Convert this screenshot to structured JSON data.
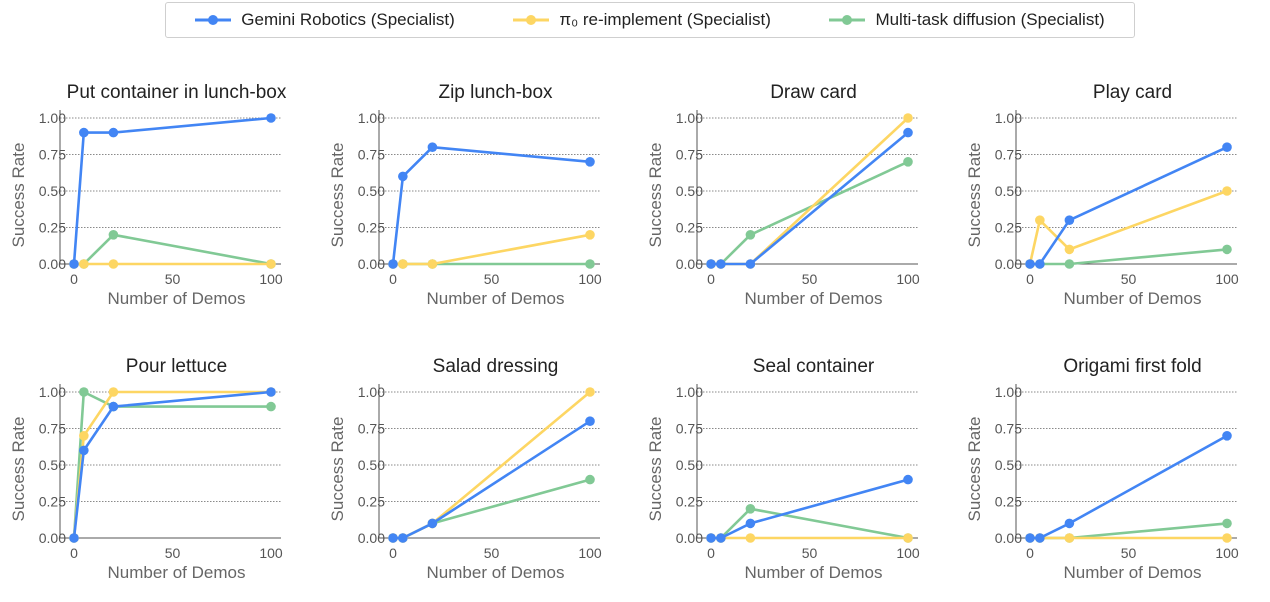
{
  "legend": {
    "items": [
      {
        "name": "Gemini Robotics (Specialist)",
        "color": "#4285F4"
      },
      {
        "name": "π₀ re-implement (Specialist)",
        "color": "#FDD663"
      },
      {
        "name": "Multi-task diffusion (Specialist)",
        "color": "#81C995"
      }
    ]
  },
  "chart_data": [
    {
      "type": "line",
      "title": "Put container in lunch-box",
      "xlabel": "Number of Demos",
      "ylabel": "Success Rate",
      "xlim": [
        0,
        100
      ],
      "ylim": [
        0,
        1
      ],
      "xticks": [
        "0",
        "50",
        "100"
      ],
      "yticks": [
        "0.00",
        "0.25",
        "0.50",
        "0.75",
        "1.00"
      ],
      "grid": "horizontal",
      "series": [
        {
          "name": "Gemini Robotics (Specialist)",
          "x": [
            0,
            5,
            20,
            100
          ],
          "y": [
            0.0,
            0.9,
            0.9,
            1.0
          ]
        },
        {
          "name": "π₀ re-implement (Specialist)",
          "x": [
            0,
            5,
            20,
            100
          ],
          "y": [
            0.0,
            0.0,
            0.0,
            0.0
          ]
        },
        {
          "name": "Multi-task diffusion (Specialist)",
          "x": [
            0,
            5,
            20,
            100
          ],
          "y": [
            0.0,
            0.0,
            0.2,
            0.0
          ]
        }
      ]
    },
    {
      "type": "line",
      "title": "Zip lunch-box",
      "xlabel": "Number of Demos",
      "ylabel": "Success Rate",
      "xlim": [
        0,
        100
      ],
      "ylim": [
        0,
        1
      ],
      "xticks": [
        "0",
        "50",
        "100"
      ],
      "yticks": [
        "0.00",
        "0.25",
        "0.50",
        "0.75",
        "1.00"
      ],
      "grid": "horizontal",
      "series": [
        {
          "name": "Gemini Robotics (Specialist)",
          "x": [
            0,
            5,
            20,
            100
          ],
          "y": [
            0.0,
            0.6,
            0.8,
            0.7
          ]
        },
        {
          "name": "π₀ re-implement (Specialist)",
          "x": [
            0,
            5,
            20,
            100
          ],
          "y": [
            0.0,
            0.0,
            0.0,
            0.2
          ]
        },
        {
          "name": "Multi-task diffusion (Specialist)",
          "x": [
            0,
            5,
            20,
            100
          ],
          "y": [
            0.0,
            0.0,
            0.0,
            0.0
          ]
        }
      ]
    },
    {
      "type": "line",
      "title": "Draw card",
      "xlabel": "Number of Demos",
      "ylabel": "Success Rate",
      "xlim": [
        0,
        100
      ],
      "ylim": [
        0,
        1
      ],
      "xticks": [
        "0",
        "50",
        "100"
      ],
      "yticks": [
        "0.00",
        "0.25",
        "0.50",
        "0.75",
        "1.00"
      ],
      "grid": "horizontal",
      "series": [
        {
          "name": "Gemini Robotics (Specialist)",
          "x": [
            0,
            5,
            20,
            100
          ],
          "y": [
            0.0,
            0.0,
            0.0,
            0.9
          ]
        },
        {
          "name": "π₀ re-implement (Specialist)",
          "x": [
            0,
            5,
            20,
            100
          ],
          "y": [
            0.0,
            0.0,
            0.0,
            1.0
          ]
        },
        {
          "name": "Multi-task diffusion (Specialist)",
          "x": [
            0,
            5,
            20,
            100
          ],
          "y": [
            0.0,
            0.0,
            0.2,
            0.7
          ]
        }
      ]
    },
    {
      "type": "line",
      "title": "Play card",
      "xlabel": "Number of Demos",
      "ylabel": "Success Rate",
      "xlim": [
        0,
        100
      ],
      "ylim": [
        0,
        1
      ],
      "xticks": [
        "0",
        "50",
        "100"
      ],
      "yticks": [
        "0.00",
        "0.25",
        "0.50",
        "0.75",
        "1.00"
      ],
      "grid": "horizontal",
      "series": [
        {
          "name": "Gemini Robotics (Specialist)",
          "x": [
            0,
            5,
            20,
            100
          ],
          "y": [
            0.0,
            0.0,
            0.3,
            0.8
          ]
        },
        {
          "name": "π₀ re-implement (Specialist)",
          "x": [
            0,
            5,
            20,
            100
          ],
          "y": [
            0.0,
            0.3,
            0.1,
            0.5
          ]
        },
        {
          "name": "Multi-task diffusion (Specialist)",
          "x": [
            0,
            5,
            20,
            100
          ],
          "y": [
            0.0,
            0.0,
            0.0,
            0.1
          ]
        }
      ]
    },
    {
      "type": "line",
      "title": "Pour lettuce",
      "xlabel": "Number of Demos",
      "ylabel": "Success Rate",
      "xlim": [
        0,
        100
      ],
      "ylim": [
        0,
        1
      ],
      "xticks": [
        "0",
        "50",
        "100"
      ],
      "yticks": [
        "0.00",
        "0.25",
        "0.50",
        "0.75",
        "1.00"
      ],
      "grid": "horizontal",
      "series": [
        {
          "name": "Gemini Robotics (Specialist)",
          "x": [
            0,
            5,
            20,
            100
          ],
          "y": [
            0.0,
            0.6,
            0.9,
            1.0
          ]
        },
        {
          "name": "π₀ re-implement (Specialist)",
          "x": [
            0,
            5,
            20,
            100
          ],
          "y": [
            0.0,
            0.7,
            1.0,
            1.0
          ]
        },
        {
          "name": "Multi-task diffusion (Specialist)",
          "x": [
            0,
            5,
            20,
            100
          ],
          "y": [
            0.0,
            1.0,
            0.9,
            0.9
          ]
        }
      ]
    },
    {
      "type": "line",
      "title": "Salad dressing",
      "xlabel": "Number of Demos",
      "ylabel": "Success Rate",
      "xlim": [
        0,
        100
      ],
      "ylim": [
        0,
        1
      ],
      "xticks": [
        "0",
        "50",
        "100"
      ],
      "yticks": [
        "0.00",
        "0.25",
        "0.50",
        "0.75",
        "1.00"
      ],
      "grid": "horizontal",
      "series": [
        {
          "name": "Gemini Robotics (Specialist)",
          "x": [
            0,
            5,
            20,
            100
          ],
          "y": [
            0.0,
            0.0,
            0.1,
            0.8
          ]
        },
        {
          "name": "π₀ re-implement (Specialist)",
          "x": [
            0,
            5,
            20,
            100
          ],
          "y": [
            0.0,
            0.0,
            0.1,
            1.0
          ]
        },
        {
          "name": "Multi-task diffusion (Specialist)",
          "x": [
            0,
            5,
            20,
            100
          ],
          "y": [
            0.0,
            0.0,
            0.1,
            0.4
          ]
        }
      ]
    },
    {
      "type": "line",
      "title": "Seal container",
      "xlabel": "Number of Demos",
      "ylabel": "Success Rate",
      "xlim": [
        0,
        100
      ],
      "ylim": [
        0,
        1
      ],
      "xticks": [
        "0",
        "50",
        "100"
      ],
      "yticks": [
        "0.00",
        "0.25",
        "0.50",
        "0.75",
        "1.00"
      ],
      "grid": "horizontal",
      "series": [
        {
          "name": "Gemini Robotics (Specialist)",
          "x": [
            0,
            5,
            20,
            100
          ],
          "y": [
            0.0,
            0.0,
            0.1,
            0.4
          ]
        },
        {
          "name": "π₀ re-implement (Specialist)",
          "x": [
            0,
            5,
            20,
            100
          ],
          "y": [
            0.0,
            0.0,
            0.0,
            0.0
          ]
        },
        {
          "name": "Multi-task diffusion (Specialist)",
          "x": [
            0,
            5,
            20,
            100
          ],
          "y": [
            0.0,
            0.0,
            0.2,
            0.0
          ]
        }
      ]
    },
    {
      "type": "line",
      "title": "Origami first fold",
      "xlabel": "Number of Demos",
      "ylabel": "Success Rate",
      "xlim": [
        0,
        100
      ],
      "ylim": [
        0,
        1
      ],
      "xticks": [
        "0",
        "50",
        "100"
      ],
      "yticks": [
        "0.00",
        "0.25",
        "0.50",
        "0.75",
        "1.00"
      ],
      "grid": "horizontal",
      "series": [
        {
          "name": "Gemini Robotics (Specialist)",
          "x": [
            0,
            5,
            20,
            100
          ],
          "y": [
            0.0,
            0.0,
            0.1,
            0.7
          ]
        },
        {
          "name": "π₀ re-implement (Specialist)",
          "x": [
            0,
            5,
            20,
            100
          ],
          "y": [
            0.0,
            0.0,
            0.0,
            0.0
          ]
        },
        {
          "name": "Multi-task diffusion (Specialist)",
          "x": [
            0,
            5,
            20,
            100
          ],
          "y": [
            0.0,
            0.0,
            0.0,
            0.1
          ]
        }
      ]
    }
  ]
}
